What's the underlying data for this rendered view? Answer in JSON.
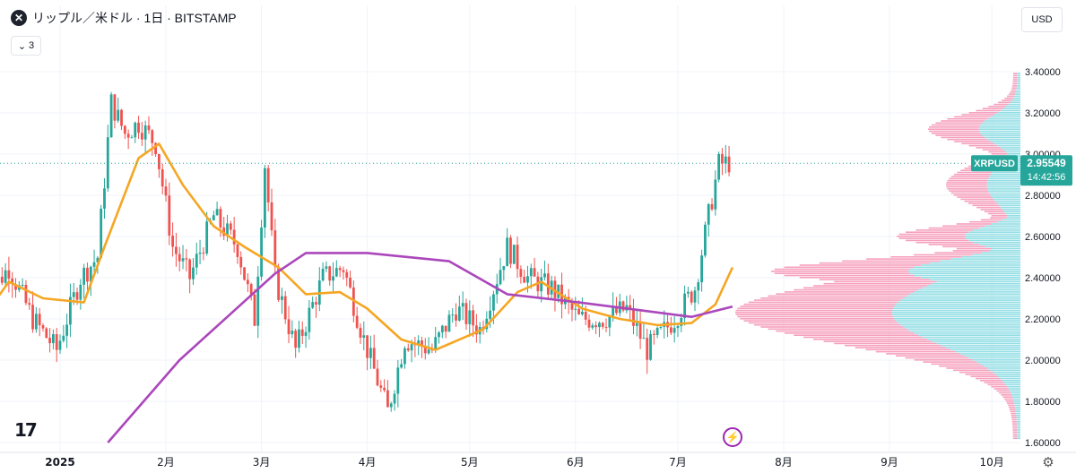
{
  "header": {
    "symbol_icon": "x-circle-icon",
    "title": "リップル／米ドル · 1日 · BITSTAMP",
    "collapse_count": "3"
  },
  "currency_button": "USD",
  "logo_text": "17",
  "settings_icon": "gear-icon",
  "event_icon": "lightning-icon",
  "colors": {
    "up": "#26a69a",
    "down": "#ef5350",
    "ma_short": "#f5a623",
    "ma_long": "#ab47bc",
    "price_tag": "#26a69a",
    "vp_up": "#7fd8e0",
    "vp_down": "#f48fb1"
  },
  "chart_data": {
    "type": "candlestick",
    "symbol": "XRPUSD",
    "current_price": "2.95549",
    "countdown": "14:42:56",
    "y_axis": {
      "range": [
        1.6,
        3.4
      ],
      "ticks": [
        "3.40000",
        "3.20000",
        "3.00000",
        "2.80000",
        "2.60000",
        "2.40000",
        "2.20000",
        "2.00000",
        "1.80000",
        "1.60000"
      ]
    },
    "x_axis": {
      "ticks": [
        "2025",
        "2月",
        "3月",
        "4月",
        "5月",
        "6月",
        "7月",
        "8月",
        "9月",
        "10月"
      ]
    },
    "close_series": [
      {
        "date": "2024-12-10",
        "close": 2.3
      },
      {
        "date": "2024-12-17",
        "close": 2.45
      },
      {
        "date": "2024-12-24",
        "close": 2.2
      },
      {
        "date": "2024-12-31",
        "close": 2.05
      },
      {
        "date": "2025-01-07",
        "close": 2.4
      },
      {
        "date": "2025-01-12",
        "close": 2.5
      },
      {
        "date": "2025-01-16",
        "close": 3.25
      },
      {
        "date": "2025-01-20",
        "close": 3.1
      },
      {
        "date": "2025-01-24",
        "close": 3.15
      },
      {
        "date": "2025-01-29",
        "close": 3.05
      },
      {
        "date": "2025-02-03",
        "close": 2.55
      },
      {
        "date": "2025-02-08",
        "close": 2.4
      },
      {
        "date": "2025-02-15",
        "close": 2.7
      },
      {
        "date": "2025-02-22",
        "close": 2.55
      },
      {
        "date": "2025-02-27",
        "close": 2.2
      },
      {
        "date": "2025-03-02",
        "close": 2.95
      },
      {
        "date": "2025-03-05",
        "close": 2.4
      },
      {
        "date": "2025-03-11",
        "close": 2.05
      },
      {
        "date": "2025-03-19",
        "close": 2.4
      },
      {
        "date": "2025-03-25",
        "close": 2.45
      },
      {
        "date": "2025-03-31",
        "close": 2.1
      },
      {
        "date": "2025-04-07",
        "close": 1.75
      },
      {
        "date": "2025-04-12",
        "close": 2.1
      },
      {
        "date": "2025-04-20",
        "close": 2.05
      },
      {
        "date": "2025-04-27",
        "close": 2.25
      },
      {
        "date": "2025-05-04",
        "close": 2.15
      },
      {
        "date": "2025-05-12",
        "close": 2.55
      },
      {
        "date": "2025-05-18",
        "close": 2.4
      },
      {
        "date": "2025-05-25",
        "close": 2.35
      },
      {
        "date": "2025-06-02",
        "close": 2.2
      },
      {
        "date": "2025-06-09",
        "close": 2.2
      },
      {
        "date": "2025-06-16",
        "close": 2.25
      },
      {
        "date": "2025-06-22",
        "close": 2.05
      },
      {
        "date": "2025-06-30",
        "close": 2.2
      },
      {
        "date": "2025-07-06",
        "close": 2.35
      },
      {
        "date": "2025-07-10",
        "close": 2.7
      },
      {
        "date": "2025-07-13",
        "close": 2.95
      },
      {
        "date": "2025-07-16",
        "close": 2.96
      }
    ],
    "ma_short": [
      {
        "date": "2024-12-10",
        "value": 2.22
      },
      {
        "date": "2024-12-17",
        "value": 2.38
      },
      {
        "date": "2024-12-27",
        "value": 2.3
      },
      {
        "date": "2025-01-08",
        "value": 2.28
      },
      {
        "date": "2025-01-14",
        "value": 2.55
      },
      {
        "date": "2025-01-24",
        "value": 2.98
      },
      {
        "date": "2025-01-30",
        "value": 3.05
      },
      {
        "date": "2025-02-06",
        "value": 2.85
      },
      {
        "date": "2025-02-15",
        "value": 2.65
      },
      {
        "date": "2025-02-24",
        "value": 2.55
      },
      {
        "date": "2025-03-06",
        "value": 2.45
      },
      {
        "date": "2025-03-14",
        "value": 2.32
      },
      {
        "date": "2025-03-24",
        "value": 2.33
      },
      {
        "date": "2025-04-01",
        "value": 2.25
      },
      {
        "date": "2025-04-11",
        "value": 2.1
      },
      {
        "date": "2025-04-21",
        "value": 2.05
      },
      {
        "date": "2025-05-05",
        "value": 2.15
      },
      {
        "date": "2025-05-15",
        "value": 2.33
      },
      {
        "date": "2025-05-22",
        "value": 2.38
      },
      {
        "date": "2025-06-03",
        "value": 2.25
      },
      {
        "date": "2025-06-14",
        "value": 2.2
      },
      {
        "date": "2025-06-25",
        "value": 2.17
      },
      {
        "date": "2025-07-05",
        "value": 2.18
      },
      {
        "date": "2025-07-12",
        "value": 2.27
      },
      {
        "date": "2025-07-17",
        "value": 2.45
      }
    ],
    "ma_long": [
      {
        "date": "2025-01-15",
        "value": 1.6
      },
      {
        "date": "2025-02-05",
        "value": 2.0
      },
      {
        "date": "2025-03-05",
        "value": 2.42
      },
      {
        "date": "2025-03-14",
        "value": 2.52
      },
      {
        "date": "2025-04-01",
        "value": 2.52
      },
      {
        "date": "2025-04-25",
        "value": 2.48
      },
      {
        "date": "2025-05-12",
        "value": 2.32
      },
      {
        "date": "2025-06-02",
        "value": 2.28
      },
      {
        "date": "2025-06-21",
        "value": 2.24
      },
      {
        "date": "2025-07-05",
        "value": 2.21
      },
      {
        "date": "2025-07-17",
        "value": 2.26
      }
    ]
  }
}
